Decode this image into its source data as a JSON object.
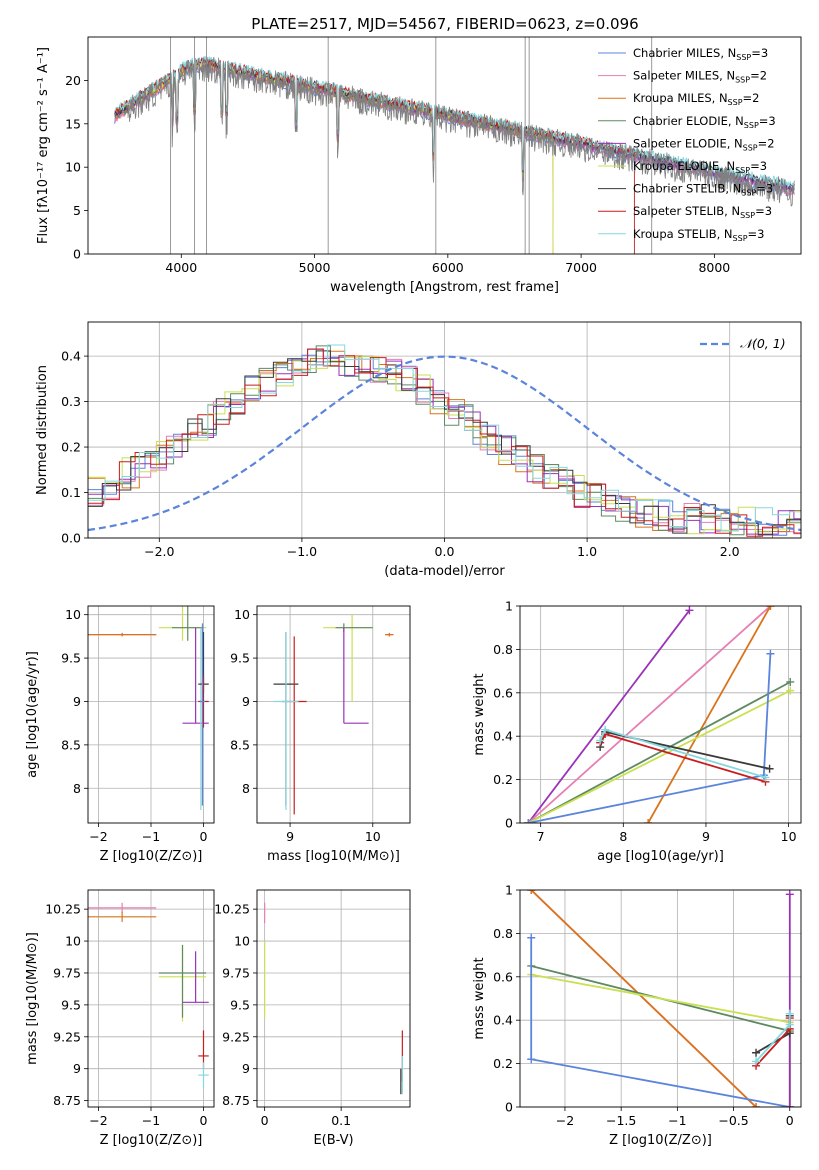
{
  "figure": {
    "title": "PLATE=2517, MJD=54567, FIBERID=0623, z=0.096"
  },
  "legend_entries": [
    {
      "label": "Chabrier MILES, N",
      "sub": "SSP",
      "tail": "=3",
      "color": "#5b84dc"
    },
    {
      "label": "Salpeter MILES, N",
      "sub": "SSP",
      "tail": "=2",
      "color": "#e67fb3"
    },
    {
      "label": "Kroupa MILES, N",
      "sub": "SSP",
      "tail": "=2",
      "color": "#d9741c"
    },
    {
      "label": "Chabrier ELODIE, N",
      "sub": "SSP",
      "tail": "=3",
      "color": "#5e8a62"
    },
    {
      "label": "Salpeter ELODIE, N",
      "sub": "SSP",
      "tail": "=2",
      "color": "#9a32b8"
    },
    {
      "label": "Kroupa ELODIE, N",
      "sub": "SSP",
      "tail": "=3",
      "color": "#c9e050"
    },
    {
      "label": "Chabrier STELIB, N",
      "sub": "SSP",
      "tail": "=3",
      "color": "#3a3a3a"
    },
    {
      "label": "Salpeter STELIB, N",
      "sub": "SSP",
      "tail": "=3",
      "color": "#c81e1e"
    },
    {
      "label": "Kroupa STELIB, N",
      "sub": "SSP",
      "tail": "=3",
      "color": "#86d8e0"
    }
  ],
  "chart_data": [
    {
      "id": "spectrum",
      "type": "line",
      "xlabel": "wavelength [Angstrom, rest frame]",
      "ylabel": "Flux [fλ10⁻¹⁷ erg cm⁻² s⁻¹ A⁻¹]",
      "xlim": [
        3300,
        8650
      ],
      "ylim": [
        0,
        25
      ],
      "xticks": [
        4000,
        5000,
        6000,
        7000,
        8000
      ],
      "yticks": [
        0,
        5,
        10,
        15,
        20
      ],
      "data_color": "#808080",
      "model_start": 3500,
      "data_start": 3600,
      "sky_lines": [
        3920,
        4100,
        4190,
        5102,
        5910,
        6580,
        6610,
        7530
      ]
    },
    {
      "id": "residuals",
      "type": "line",
      "xlabel": "(data-model)/error",
      "ylabel": "Normed distribution",
      "xlim": [
        -2.5,
        2.5
      ],
      "ylim": [
        0,
        0.475
      ],
      "xticks": [
        -2,
        -1,
        0,
        1,
        2
      ],
      "yticks": [
        0.0,
        0.1,
        0.2,
        0.3,
        0.4
      ],
      "gaussian_label": "𝒩(0, 1)",
      "gaussian_color": "#5b84dc"
    },
    {
      "id": "age_vs_Z",
      "type": "scatter",
      "xlabel": "Z [log10(Z/Z⊙)]",
      "ylabel": "age  [log10(age/yr)]",
      "xlim": [
        -2.2,
        0.2
      ],
      "ylim": [
        7.6,
        10.1
      ],
      "xticks": [
        -2,
        -1,
        0
      ],
      "yticks": [
        8.0,
        8.5,
        9.0,
        9.5,
        10.0
      ],
      "points": [
        {
          "x": -1.55,
          "y": 9.77,
          "xerr": [
            0.65,
            0.65
          ],
          "yerr": [
            0.02,
            0.02
          ],
          "color": "#e67fb3"
        },
        {
          "x": -1.55,
          "y": 9.77,
          "xerr": [
            0.65,
            0.65
          ],
          "yerr": [
            0.02,
            0.02
          ],
          "color": "#d9741c"
        },
        {
          "x": -0.4,
          "y": 9.85,
          "xerr": [
            0.45,
            0.45
          ],
          "yerr": [
            0.15,
            0.85
          ],
          "color": "#c9e050"
        },
        {
          "x": -0.3,
          "y": 9.85,
          "xerr": [
            0.3,
            0.3
          ],
          "yerr": [
            0.15,
            0.85
          ],
          "color": "#5e8a62"
        },
        {
          "x": -0.15,
          "y": 8.75,
          "xerr": [
            0.25,
            0.25
          ],
          "yerr": [
            0.0,
            1.1
          ],
          "color": "#9a32b8"
        },
        {
          "x": -0.05,
          "y": 9.0,
          "xerr": [
            0.05,
            0.05
          ],
          "yerr": [
            1.25,
            0.85
          ],
          "color": "#86d8e0"
        },
        {
          "x": 0.0,
          "y": 9.2,
          "xerr": [
            0.1,
            0.1
          ],
          "yerr": [
            0.1,
            0.6
          ],
          "color": "#3a3a3a"
        },
        {
          "x": 0.0,
          "y": 9.0,
          "xerr": [
            0.1,
            0.1
          ],
          "yerr": [
            0.3,
            0.3
          ],
          "color": "#c81e1e"
        },
        {
          "x": -0.02,
          "y": 9.0,
          "xerr": [
            0.05,
            0.05
          ],
          "yerr": [
            1.2,
            0.9
          ],
          "color": "#5b84dc"
        }
      ]
    },
    {
      "id": "age_vs_mass",
      "type": "scatter",
      "xlabel": "mass [log10(M/M⊙)]",
      "ylabel": "",
      "xlim": [
        8.6,
        10.45
      ],
      "ylim": [
        7.6,
        10.1
      ],
      "xticks": [
        9,
        10
      ],
      "yticks": [
        8.0,
        8.5,
        9.0,
        9.5,
        10.0
      ],
      "points": [
        {
          "x": 8.95,
          "y": 9.2,
          "xerr": [
            0.15,
            0.15
          ],
          "yerr": [
            1.4,
            0.6
          ],
          "color": "#3a3a3a"
        },
        {
          "x": 9.05,
          "y": 9.0,
          "xerr": [
            0.15,
            0.15
          ],
          "yerr": [
            1.3,
            0.75
          ],
          "color": "#c81e1e"
        },
        {
          "x": 8.95,
          "y": 9.0,
          "xerr": [
            0.15,
            0.15
          ],
          "yerr": [
            1.25,
            0.8
          ],
          "color": "#86d8e0"
        },
        {
          "x": 9.75,
          "y": 9.85,
          "xerr": [
            0.35,
            0.25
          ],
          "yerr": [
            0.85,
            0.15
          ],
          "color": "#c9e050"
        },
        {
          "x": 9.65,
          "y": 9.85,
          "xerr": [
            0.1,
            0.35
          ],
          "yerr": [
            0.05,
            0.05
          ],
          "color": "#5e8a62"
        },
        {
          "x": 9.65,
          "y": 8.75,
          "xerr": [
            0.0,
            0.3
          ],
          "yerr": [
            0.0,
            1.1
          ],
          "color": "#9a32b8"
        },
        {
          "x": 10.2,
          "y": 9.77,
          "xerr": [
            0.05,
            0.05
          ],
          "yerr": [
            0.02,
            0.02
          ],
          "color": "#e67fb3"
        },
        {
          "x": 10.2,
          "y": 9.77,
          "xerr": [
            0.05,
            0.05
          ],
          "yerr": [
            0.02,
            0.02
          ],
          "color": "#d9741c"
        }
      ]
    },
    {
      "id": "weight_vs_age",
      "type": "line",
      "xlabel": "age  [log10(age/yr)]",
      "ylabel": "mass weight",
      "xlim": [
        6.75,
        10.15
      ],
      "ylim": [
        0.0,
        1.0
      ],
      "xticks": [
        7,
        8,
        9,
        10
      ],
      "yticks": [
        0.0,
        0.2,
        0.4,
        0.6,
        0.8,
        1.0
      ],
      "series": [
        {
          "color": "#9a32b8",
          "x": [
            6.85,
            8.8
          ],
          "y": [
            0.0,
            0.98
          ]
        },
        {
          "color": "#e67fb3",
          "x": [
            6.85,
            9.78
          ],
          "y": [
            0.0,
            1.0
          ]
        },
        {
          "color": "#d9741c",
          "x": [
            8.3,
            9.78
          ],
          "y": [
            0.0,
            1.0
          ]
        },
        {
          "color": "#5e8a62",
          "x": [
            6.85,
            10.02
          ],
          "y": [
            0.0,
            0.65
          ]
        },
        {
          "color": "#c9e050",
          "x": [
            6.85,
            10.02
          ],
          "y": [
            0.0,
            0.61
          ]
        },
        {
          "color": "#5b84dc",
          "x": [
            6.85,
            9.7,
            9.78
          ],
          "y": [
            0.0,
            0.22,
            0.78
          ]
        },
        {
          "color": "#3a3a3a",
          "x": [
            7.72,
            7.78,
            9.77
          ],
          "y": [
            0.35,
            0.42,
            0.25
          ]
        },
        {
          "color": "#c81e1e",
          "x": [
            7.72,
            7.78,
            9.72
          ],
          "y": [
            0.37,
            0.41,
            0.19
          ]
        },
        {
          "color": "#86d8e0",
          "x": [
            7.72,
            7.78,
            9.72
          ],
          "y": [
            0.38,
            0.43,
            0.21
          ]
        }
      ]
    },
    {
      "id": "mass_vs_Z",
      "type": "scatter",
      "xlabel": "Z [log10(Z/Z⊙)]",
      "ylabel": "mass [log10(M/M⊙)]",
      "xlim": [
        -2.2,
        0.2
      ],
      "ylim": [
        8.7,
        10.4
      ],
      "xticks": [
        -2,
        -1,
        0
      ],
      "yticks": [
        8.75,
        9.0,
        9.25,
        9.5,
        9.75,
        10.0,
        10.25
      ],
      "points": [
        {
          "x": -1.55,
          "y": 10.26,
          "xerr": [
            0.65,
            0.65
          ],
          "yerr": [
            0.04,
            0.04
          ],
          "color": "#e67fb3"
        },
        {
          "x": -1.55,
          "y": 10.19,
          "xerr": [
            0.65,
            0.65
          ],
          "yerr": [
            0.04,
            0.04
          ],
          "color": "#d9741c"
        },
        {
          "x": -0.4,
          "y": 9.72,
          "xerr": [
            0.45,
            0.45
          ],
          "yerr": [
            0.35,
            0.25
          ],
          "color": "#c9e050"
        },
        {
          "x": -0.4,
          "y": 9.75,
          "xerr": [
            0.45,
            0.45
          ],
          "yerr": [
            0.35,
            0.22
          ],
          "color": "#5e8a62"
        },
        {
          "x": -0.15,
          "y": 9.52,
          "xerr": [
            0.25,
            0.25
          ],
          "yerr": [
            0.0,
            0.4
          ],
          "color": "#9a32b8"
        },
        {
          "x": 0.0,
          "y": 9.1,
          "xerr": [
            0.1,
            0.1
          ],
          "yerr": [
            0.1,
            0.2
          ],
          "color": "#c81e1e"
        },
        {
          "x": 0.0,
          "y": 8.95,
          "xerr": [
            0.1,
            0.1
          ],
          "yerr": [
            0.1,
            0.1
          ],
          "color": "#86d8e0"
        }
      ]
    },
    {
      "id": "mass_vs_ebv",
      "type": "scatter",
      "xlabel": "E(B-V)",
      "ylabel": "",
      "xlim": [
        -0.01,
        0.19
      ],
      "ylim": [
        8.7,
        10.4
      ],
      "xticks": [
        0.0,
        0.1
      ],
      "yticks": [
        8.75,
        9.0,
        9.25,
        9.5,
        9.75,
        10.0,
        10.25
      ],
      "points": [
        {
          "x": 0.0,
          "y": 10.22,
          "xerr": [
            0,
            0
          ],
          "yerr": [
            0.08,
            0.08
          ],
          "color": "#e67fb3"
        },
        {
          "x": 0.0,
          "y": 9.7,
          "xerr": [
            0,
            0
          ],
          "yerr": [
            0.3,
            0.3
          ],
          "color": "#c9e050"
        },
        {
          "x": 0.18,
          "y": 9.1,
          "xerr": [
            0,
            0
          ],
          "yerr": [
            0.2,
            0.2
          ],
          "color": "#c81e1e"
        },
        {
          "x": 0.18,
          "y": 8.95,
          "xerr": [
            0,
            0
          ],
          "yerr": [
            0.15,
            0.15
          ],
          "color": "#86d8e0"
        },
        {
          "x": 0.178,
          "y": 8.9,
          "xerr": [
            0,
            0
          ],
          "yerr": [
            0.1,
            0.1
          ],
          "color": "#3a3a3a"
        }
      ]
    },
    {
      "id": "weight_vs_Z",
      "type": "line",
      "xlabel": "Z [log10(Z/Z⊙)]",
      "ylabel": "mass weight",
      "xlim": [
        -2.4,
        0.1
      ],
      "ylim": [
        0.0,
        1.0
      ],
      "xticks": [
        -2.0,
        -1.5,
        -1.0,
        -0.5,
        0.0
      ],
      "yticks": [
        0.0,
        0.2,
        0.4,
        0.6,
        0.8,
        1.0
      ],
      "series": [
        {
          "color": "#e67fb3",
          "x": [
            -2.3,
            -0.3
          ],
          "y": [
            1.0,
            0.0
          ]
        },
        {
          "color": "#d9741c",
          "x": [
            -2.3,
            -0.3
          ],
          "y": [
            1.0,
            0.0
          ]
        },
        {
          "color": "#5e8a62",
          "x": [
            -2.3,
            0.0,
            0.0
          ],
          "y": [
            0.65,
            0.35,
            0.0
          ]
        },
        {
          "color": "#c9e050",
          "x": [
            -2.3,
            0.0,
            0.0
          ],
          "y": [
            0.61,
            0.39,
            0.0
          ]
        },
        {
          "color": "#5b84dc",
          "x": [
            -2.3,
            -2.3,
            0.0
          ],
          "y": [
            0.78,
            0.22,
            0.0
          ]
        },
        {
          "color": "#9a32b8",
          "x": [
            0.0,
            0.0
          ],
          "y": [
            0.0,
            0.98
          ]
        },
        {
          "color": "#3a3a3a",
          "x": [
            -0.3,
            0.0,
            0.0
          ],
          "y": [
            0.25,
            0.34,
            0.42
          ]
        },
        {
          "color": "#c81e1e",
          "x": [
            -0.3,
            0.0,
            0.0
          ],
          "y": [
            0.19,
            0.36,
            0.41
          ]
        },
        {
          "color": "#86d8e0",
          "x": [
            -0.3,
            0.0,
            0.0
          ],
          "y": [
            0.21,
            0.38,
            0.43
          ]
        }
      ]
    }
  ]
}
